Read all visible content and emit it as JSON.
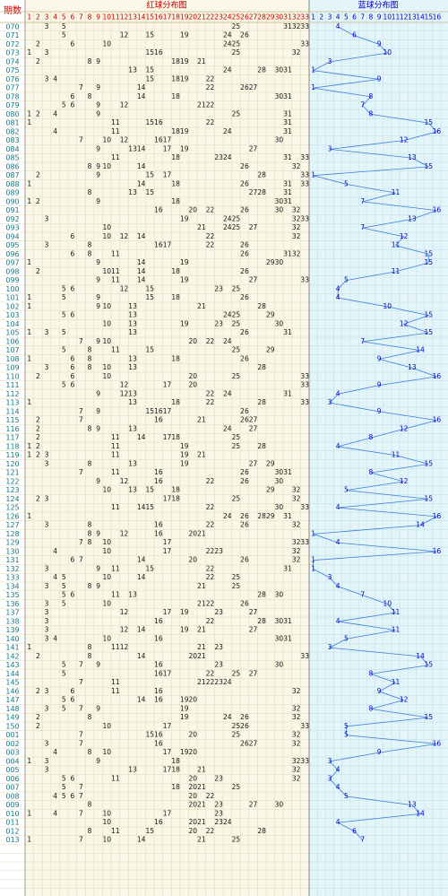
{
  "header": {
    "issue_label": "期数",
    "red_title": "红球分布图",
    "blue_title": "蓝球分布图",
    "red_columns": [
      1,
      2,
      3,
      4,
      5,
      6,
      7,
      8,
      9,
      10,
      11,
      12,
      13,
      14,
      15,
      16,
      17,
      18,
      19,
      20,
      21,
      22,
      23,
      24,
      25,
      26,
      27,
      28,
      29,
      30,
      31,
      32,
      33
    ],
    "blue_columns": [
      1,
      2,
      3,
      4,
      5,
      6,
      7,
      8,
      9,
      10,
      11,
      12,
      13,
      14,
      15,
      16
    ]
  },
  "rows": [
    {
      "issue": "070",
      "red": [
        3,
        5,
        25,
        31,
        32,
        33
      ],
      "blue": 4
    },
    {
      "issue": "071",
      "red": [
        5,
        12,
        15,
        19,
        24,
        26
      ],
      "blue": 6
    },
    {
      "issue": "072",
      "red": [
        2,
        6,
        10,
        24,
        25,
        33
      ],
      "blue": 9
    },
    {
      "issue": "073",
      "red": [
        1,
        3,
        15,
        16,
        25,
        32
      ],
      "blue": 10
    },
    {
      "issue": "074",
      "red": [
        2,
        8,
        9,
        18,
        19,
        21
      ],
      "blue": 3
    },
    {
      "issue": "075",
      "red": [
        13,
        15,
        24,
        28,
        30,
        31
      ],
      "blue": 1
    },
    {
      "issue": "076",
      "red": [
        3,
        4,
        15,
        18,
        19,
        22
      ],
      "blue": 9
    },
    {
      "issue": "077",
      "red": [
        7,
        9,
        14,
        22,
        26,
        27
      ],
      "blue": 1
    },
    {
      "issue": "078",
      "red": [
        6,
        8,
        14,
        18,
        30,
        31
      ],
      "blue": 8
    },
    {
      "issue": "079",
      "red": [
        5,
        6,
        9,
        12,
        21,
        22
      ],
      "blue": 7
    },
    {
      "issue": "080",
      "red": [
        1,
        2,
        4,
        9,
        25,
        31
      ],
      "blue": 8
    },
    {
      "issue": "081",
      "red": [
        1,
        11,
        15,
        16,
        22,
        31
      ],
      "blue": 15
    },
    {
      "issue": "082",
      "red": [
        4,
        11,
        18,
        19,
        24,
        31
      ],
      "blue": 16
    },
    {
      "issue": "083",
      "red": [
        7,
        10,
        12,
        16,
        17,
        30
      ],
      "blue": 12
    },
    {
      "issue": "084",
      "red": [
        9,
        13,
        14,
        17,
        19,
        27
      ],
      "blue": 3
    },
    {
      "issue": "085",
      "red": [
        11,
        18,
        23,
        24,
        31,
        33
      ],
      "blue": 13
    },
    {
      "issue": "086",
      "red": [
        8,
        9,
        10,
        14,
        26,
        32
      ],
      "blue": 15
    },
    {
      "issue": "087",
      "red": [
        2,
        9,
        15,
        17,
        28,
        33
      ],
      "blue": 1
    },
    {
      "issue": "088",
      "red": [
        1,
        14,
        18,
        26,
        31,
        33
      ],
      "blue": 5
    },
    {
      "issue": "089",
      "red": [
        8,
        13,
        15,
        27,
        28,
        31
      ],
      "blue": 11
    },
    {
      "issue": "090",
      "red": [
        1,
        2,
        9,
        18,
        30,
        31
      ],
      "blue": 7
    },
    {
      "issue": "091",
      "red": [
        16,
        20,
        22,
        26,
        30,
        32
      ],
      "blue": 16
    },
    {
      "issue": "092",
      "red": [
        3,
        19,
        24,
        25,
        32,
        33
      ],
      "blue": 13
    },
    {
      "issue": "093",
      "red": [
        10,
        21,
        24,
        25,
        27,
        32
      ],
      "blue": 7
    },
    {
      "issue": "094",
      "red": [
        6,
        10,
        12,
        14,
        22,
        32
      ],
      "blue": 12
    },
    {
      "issue": "095",
      "red": [
        3,
        8,
        16,
        17,
        22,
        26
      ],
      "blue": 11
    },
    {
      "issue": "096",
      "red": [
        6,
        8,
        11,
        26,
        31,
        32
      ],
      "blue": 15
    },
    {
      "issue": "097",
      "red": [
        1,
        9,
        14,
        19,
        29,
        30
      ],
      "blue": 15
    },
    {
      "issue": "098",
      "red": [
        2,
        10,
        11,
        14,
        18,
        26
      ],
      "blue": 11
    },
    {
      "issue": "099",
      "red": [
        9,
        11,
        14,
        19,
        27,
        33
      ],
      "blue": 5
    },
    {
      "issue": "100",
      "red": [
        5,
        6,
        12,
        15,
        23,
        25
      ],
      "blue": 4
    },
    {
      "issue": "101",
      "red": [
        1,
        5,
        9,
        15,
        18,
        26
      ],
      "blue": 4
    },
    {
      "issue": "102",
      "red": [
        1,
        9,
        10,
        13,
        21,
        28
      ],
      "blue": 10
    },
    {
      "issue": "103",
      "red": [
        5,
        6,
        13,
        24,
        25,
        29
      ],
      "blue": 15
    },
    {
      "issue": "104",
      "red": [
        10,
        13,
        19,
        23,
        25,
        30
      ],
      "blue": 12
    },
    {
      "issue": "105",
      "red": [
        1,
        3,
        5,
        13,
        26,
        31
      ],
      "blue": 15
    },
    {
      "issue": "106",
      "red": [
        7,
        9,
        10,
        20,
        22,
        24
      ],
      "blue": 7
    },
    {
      "issue": "107",
      "red": [
        5,
        8,
        11,
        15,
        25,
        29
      ],
      "blue": 14
    },
    {
      "issue": "108",
      "red": [
        1,
        6,
        8,
        13,
        18,
        26
      ],
      "blue": 9
    },
    {
      "issue": "109",
      "red": [
        3,
        6,
        8,
        10,
        13,
        28
      ],
      "blue": 13
    },
    {
      "issue": "110",
      "red": [
        2,
        6,
        10,
        20,
        25,
        33
      ],
      "blue": 16
    },
    {
      "issue": "111",
      "red": [
        5,
        6,
        12,
        17,
        20,
        33
      ],
      "blue": 9
    },
    {
      "issue": "112",
      "red": [
        9,
        12,
        13,
        22,
        24,
        31
      ],
      "blue": 4
    },
    {
      "issue": "113",
      "red": [
        1,
        13,
        18,
        22,
        28,
        33
      ],
      "blue": 3
    },
    {
      "issue": "114",
      "red": [
        7,
        9,
        15,
        16,
        17,
        26
      ],
      "blue": 9
    },
    {
      "issue": "115",
      "red": [
        2,
        7,
        16,
        21,
        26,
        27
      ],
      "blue": 16
    },
    {
      "issue": "116",
      "red": [
        2,
        8,
        9,
        13,
        24,
        27
      ],
      "blue": 12
    },
    {
      "issue": "117",
      "red": [
        2,
        11,
        14,
        17,
        18,
        25
      ],
      "blue": 8
    },
    {
      "issue": "118",
      "red": [
        1,
        2,
        11,
        19,
        25,
        28
      ],
      "blue": 4
    },
    {
      "issue": "119",
      "red": [
        1,
        2,
        3,
        11,
        19,
        21
      ],
      "blue": 11
    },
    {
      "issue": "120",
      "red": [
        3,
        8,
        13,
        19,
        27,
        29
      ],
      "blue": 15
    },
    {
      "issue": "121",
      "red": [
        7,
        11,
        16,
        26,
        30,
        31
      ],
      "blue": 8
    },
    {
      "issue": "122",
      "red": [
        9,
        12,
        16,
        22,
        26,
        30
      ],
      "blue": 12
    },
    {
      "issue": "123",
      "red": [
        10,
        13,
        15,
        18,
        29,
        32
      ],
      "blue": 5
    },
    {
      "issue": "124",
      "red": [
        2,
        3,
        17,
        18,
        25,
        32
      ],
      "blue": 15
    },
    {
      "issue": "125",
      "red": [
        11,
        14,
        15,
        22,
        30,
        33
      ],
      "blue": 4
    },
    {
      "issue": "126",
      "red": [
        1,
        24,
        26,
        28,
        29,
        31
      ],
      "blue": 16
    },
    {
      "issue": "127",
      "red": [
        3,
        8,
        16,
        22,
        26,
        32
      ],
      "blue": 14
    },
    {
      "issue": "128",
      "red": [
        8,
        9,
        12,
        16,
        20,
        21
      ],
      "blue": 1
    },
    {
      "issue": "129",
      "red": [
        7,
        8,
        10,
        17,
        32,
        33
      ],
      "blue": 4
    },
    {
      "issue": "130",
      "red": [
        4,
        10,
        17,
        22,
        23,
        32
      ],
      "blue": 16
    },
    {
      "issue": "131",
      "red": [
        6,
        7,
        14,
        20,
        26,
        32
      ],
      "blue": 1
    },
    {
      "issue": "132",
      "red": [
        3,
        9,
        11,
        15,
        22,
        31
      ],
      "blue": 1
    },
    {
      "issue": "133",
      "red": [
        4,
        5,
        10,
        14,
        22,
        25
      ],
      "blue": 3
    },
    {
      "issue": "134",
      "red": [
        3,
        5,
        8,
        9,
        21,
        25
      ],
      "blue": 4
    },
    {
      "issue": "135",
      "red": [
        5,
        6,
        11,
        13,
        28,
        30
      ],
      "blue": 7
    },
    {
      "issue": "136",
      "red": [
        3,
        5,
        10,
        21,
        22,
        26
      ],
      "blue": 10
    },
    {
      "issue": "137",
      "red": [
        3,
        12,
        17,
        19,
        23,
        27
      ],
      "blue": 11
    },
    {
      "issue": "138",
      "red": [
        3,
        16,
        22,
        28,
        30,
        31
      ],
      "blue": 4
    },
    {
      "issue": "139",
      "red": [
        3,
        12,
        14,
        19,
        21,
        27
      ],
      "blue": 11
    },
    {
      "issue": "140",
      "red": [
        3,
        4,
        10,
        16,
        30,
        31
      ],
      "blue": 5
    },
    {
      "issue": "141",
      "red": [
        1,
        8,
        11,
        12,
        21,
        23
      ],
      "blue": 3
    },
    {
      "issue": "142",
      "red": [
        2,
        8,
        14,
        20,
        21,
        33
      ],
      "blue": 14
    },
    {
      "issue": "143",
      "red": [
        5,
        7,
        9,
        16,
        23,
        30
      ],
      "blue": 15
    },
    {
      "issue": "144",
      "red": [
        5,
        16,
        17,
        22,
        25,
        27
      ],
      "blue": 8
    },
    {
      "issue": "145",
      "red": [
        7,
        11,
        21,
        22,
        23,
        24
      ],
      "blue": 11
    },
    {
      "issue": "146",
      "red": [
        2,
        3,
        6,
        11,
        16,
        32
      ],
      "blue": 9
    },
    {
      "issue": "147",
      "red": [
        5,
        6,
        14,
        16,
        19,
        20
      ],
      "blue": 12
    },
    {
      "issue": "148",
      "red": [
        3,
        5,
        7,
        9,
        19,
        32
      ],
      "blue": 8
    },
    {
      "issue": "149",
      "red": [
        2,
        8,
        19,
        24,
        26,
        32
      ],
      "blue": 15
    },
    {
      "issue": "150",
      "red": [
        2,
        10,
        17,
        25,
        26,
        33
      ],
      "blue": 5
    },
    {
      "issue": "001",
      "red": [
        7,
        15,
        16,
        20,
        25,
        32
      ],
      "blue": 5
    },
    {
      "issue": "002",
      "red": [
        3,
        7,
        16,
        26,
        27,
        32
      ],
      "blue": 16
    },
    {
      "issue": "003",
      "red": [
        4,
        8,
        10,
        17,
        19,
        20
      ],
      "blue": 9
    },
    {
      "issue": "004",
      "red": [
        1,
        3,
        9,
        18,
        32,
        33
      ],
      "blue": 3
    },
    {
      "issue": "005",
      "red": [
        3,
        13,
        17,
        18,
        21,
        32
      ],
      "blue": 4
    },
    {
      "issue": "006",
      "red": [
        5,
        6,
        11,
        20,
        23,
        32
      ],
      "blue": 3
    },
    {
      "issue": "007",
      "red": [
        5,
        7,
        18,
        20,
        21,
        25
      ],
      "blue": 4
    },
    {
      "issue": "008",
      "red": [
        4,
        5,
        6,
        7,
        20,
        22
      ],
      "blue": 5
    },
    {
      "issue": "009",
      "red": [
        8,
        20,
        21,
        23,
        27,
        30
      ],
      "blue": 13
    },
    {
      "issue": "010",
      "red": [
        1,
        4,
        7,
        10,
        17,
        23
      ],
      "blue": 14
    },
    {
      "issue": "011",
      "red": [
        10,
        16,
        20,
        21,
        23,
        24
      ],
      "blue": 4
    },
    {
      "issue": "012",
      "red": [
        8,
        11,
        15,
        20,
        22,
        28
      ],
      "blue": 6
    },
    {
      "issue": "013",
      "red": [
        1,
        7,
        10,
        14,
        21,
        25
      ],
      "blue": 7
    }
  ]
}
